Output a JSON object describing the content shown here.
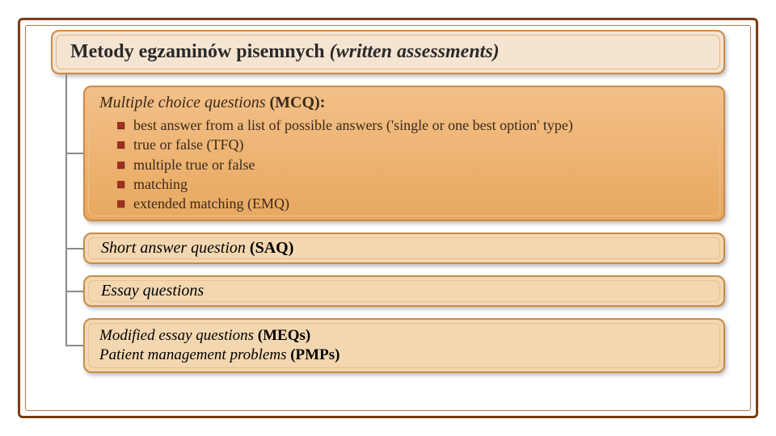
{
  "layout": {
    "frame_outer_color": "#7a3b12",
    "frame_inner_color": "#b87a4a",
    "slide_bg": "#ffffff"
  },
  "boxes": {
    "title": {
      "text_plain": "Metody egzaminów pisemnych ",
      "text_italic": "(written assessments)",
      "bg": "#f5e4d0",
      "border": "#c98b4a",
      "inner_border": "#e0b88a"
    },
    "mcq": {
      "heading_italic": "Multiple choice questions ",
      "heading_bold": "(MCQ):",
      "bullets": [
        "best answer from a list of possible answers ('single or one best option' type)",
        "true or false (TFQ)",
        "multiple true or false",
        "matching",
        "extended matching (EMQ)"
      ],
      "bg_top": "#f3c088",
      "bg_bottom": "#e8a860",
      "border": "#c98b4a",
      "inner_border": "#e8c090"
    },
    "saq": {
      "text_italic": "Short answer question ",
      "text_bold": "(SAQ)",
      "bg": "#f3d7b0",
      "border": "#c98b4a",
      "inner_border": "#e8c090"
    },
    "essay": {
      "text_italic": "Essay questions",
      "text_bold": "",
      "bg": "#f3d7b0",
      "border": "#c98b4a",
      "inner_border": "#e8c090"
    },
    "meq": {
      "line1_italic": "Modified essay questions ",
      "line1_bold": "(MEQs)",
      "line2_italic": "Patient management problems ",
      "line2_bold": "(PMPs)",
      "bg": "#f3d7b0",
      "border": "#c98b4a",
      "inner_border": "#e8c090"
    }
  },
  "bullet_marker_color": "#a03020",
  "connector_color": "#8a8a8a",
  "fonts": {
    "title_size": 24,
    "heading_size": 20,
    "bullet_size": 18
  }
}
